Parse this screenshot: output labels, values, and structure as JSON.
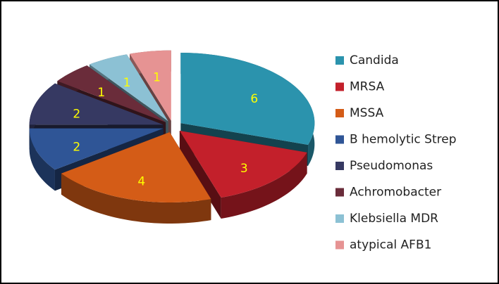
{
  "chart_data": {
    "type": "pie3d",
    "categories": [
      "Candida",
      "MRSA",
      "MSSA",
      "B hemolytic Strep",
      "Pseudomonas",
      "Achromobacter",
      "Klebsiella MDR",
      "atypical AFB1"
    ],
    "values": [
      6,
      3,
      4,
      2,
      2,
      1,
      1,
      1
    ],
    "colors": [
      "#2b93ad",
      "#c3202b",
      "#d45c17",
      "#2f5596",
      "#363962",
      "#6a2c3a",
      "#8cc1d4",
      "#e69393"
    ],
    "legend": "right"
  }
}
